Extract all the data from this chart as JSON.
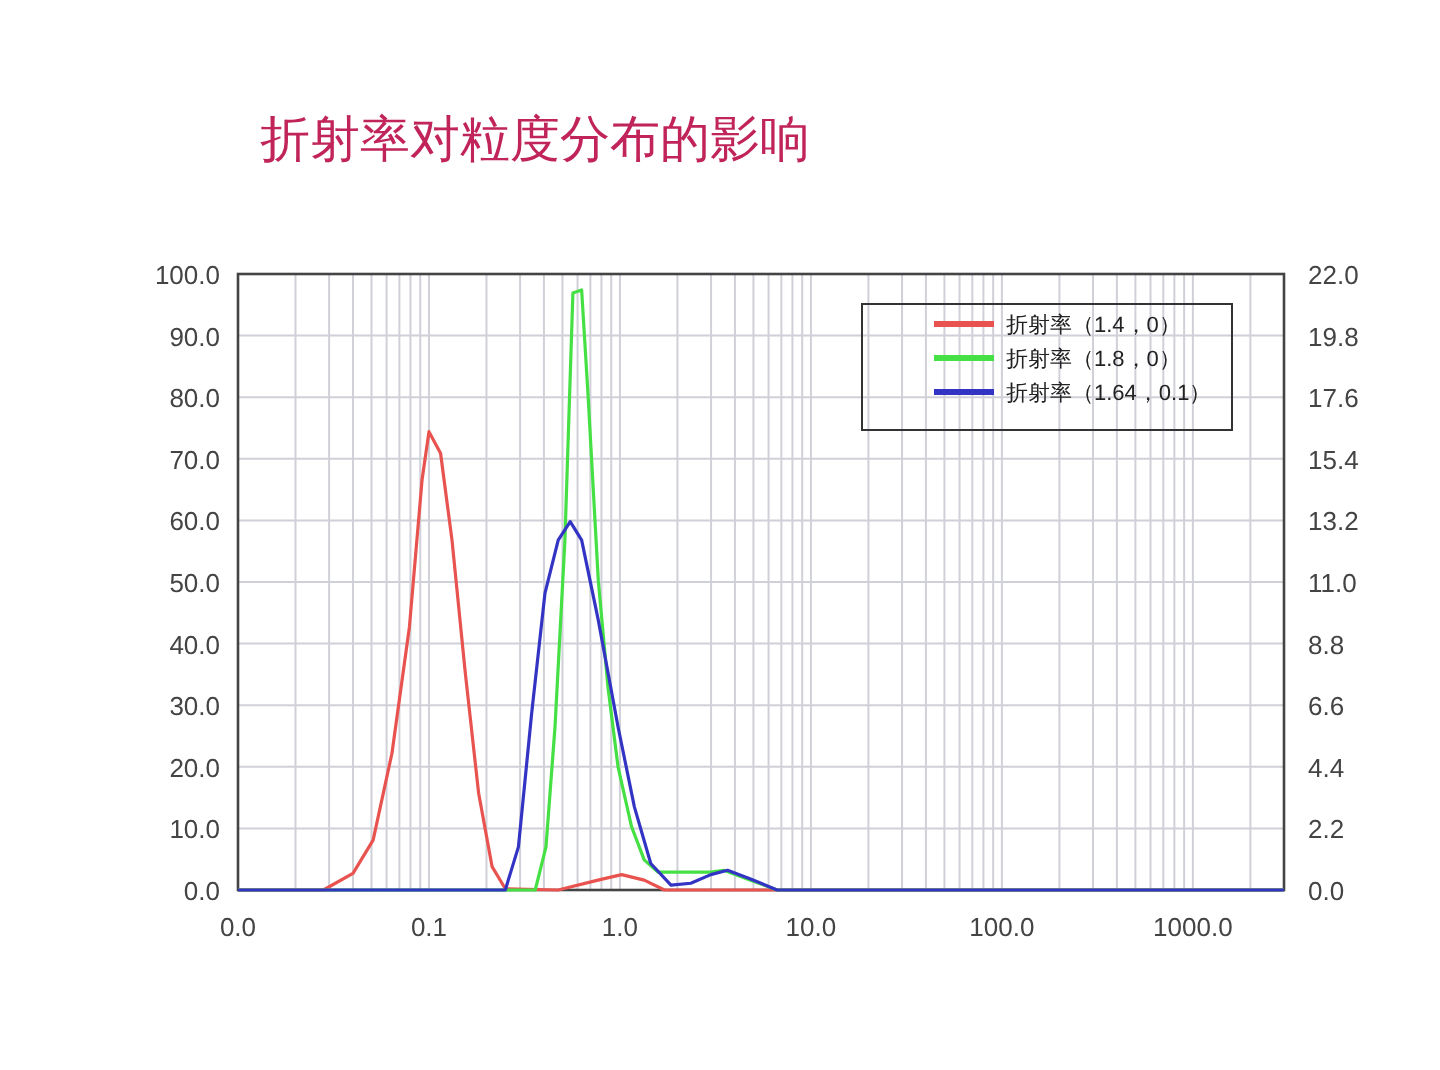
{
  "chart_data": {
    "type": "line",
    "title": "折射率对粒度分布的影响",
    "log": "x",
    "grid": true,
    "legend": "top right",
    "xlim": [
      0.01,
      3000
    ],
    "xticks": [
      {
        "value": 0.01,
        "label": "0.0"
      },
      {
        "value": 0.1,
        "label": "0.1"
      },
      {
        "value": 1,
        "label": "1.0"
      },
      {
        "value": 10,
        "label": "10.0"
      },
      {
        "value": 100,
        "label": "100.0"
      },
      {
        "value": 1000,
        "label": "1000.0"
      }
    ],
    "ylim": [
      0,
      100
    ],
    "yticks": [
      {
        "value": 0,
        "label": "0.0"
      },
      {
        "value": 10,
        "label": "10.0"
      },
      {
        "value": 20,
        "label": "20.0"
      },
      {
        "value": 30,
        "label": "30.0"
      },
      {
        "value": 40,
        "label": "40.0"
      },
      {
        "value": 50,
        "label": "50.0"
      },
      {
        "value": 60,
        "label": "60.0"
      },
      {
        "value": 70,
        "label": "70.0"
      },
      {
        "value": 80,
        "label": "80.0"
      },
      {
        "value": 90,
        "label": "90.0"
      },
      {
        "value": 100,
        "label": "100.0"
      }
    ],
    "y2lim": [
      0,
      22
    ],
    "y2ticks": [
      {
        "value": 0,
        "label": "0.0"
      },
      2.2,
      4.4,
      6.6,
      8.8,
      {
        "value": 11,
        "label": "11.0"
      },
      13.2,
      15.4,
      17.6,
      19.8,
      {
        "value": 22,
        "label": "22.0"
      }
    ],
    "series": [
      {
        "name": "折射率（1.4，0）",
        "color": "#e8534f",
        "x": [
          0.01,
          0.028,
          0.04,
          0.051,
          0.064,
          0.079,
          0.092,
          0.1,
          0.115,
          0.132,
          0.155,
          0.182,
          0.214,
          0.251,
          0.475,
          0.767,
          1.02,
          1.34,
          1.71,
          3000
        ],
        "values": [
          0,
          0,
          2.7,
          8.1,
          22.2,
          42.7,
          66.6,
          74.4,
          70.9,
          56.8,
          35.2,
          15.7,
          3.8,
          0.2,
          0,
          1.6,
          2.5,
          1.6,
          0,
          0
        ]
      },
      {
        "name": "折射率（1.8，0）",
        "color": "#44e044",
        "x": [
          0.01,
          0.36,
          0.41,
          0.457,
          0.515,
          0.567,
          0.63,
          0.68,
          0.77,
          0.865,
          0.977,
          1.15,
          1.34,
          1.58,
          2.99,
          3.5,
          4.83,
          6.65,
          3000
        ],
        "values": [
          0,
          0,
          7.0,
          26.5,
          56.8,
          96.9,
          97.4,
          80.6,
          50.3,
          33.0,
          20.0,
          10.3,
          4.9,
          2.9,
          2.9,
          3.2,
          1.6,
          0,
          0
        ]
      },
      {
        "name": "折射率（1.64，0.1）",
        "color": "#3434c4",
        "x": [
          0.01,
          0.251,
          0.294,
          0.345,
          0.405,
          0.475,
          0.549,
          0.63,
          0.77,
          0.977,
          1.19,
          1.45,
          1.85,
          2.35,
          2.99,
          3.66,
          4.83,
          6.65,
          3000
        ],
        "values": [
          0,
          0,
          7.0,
          28.7,
          48.2,
          56.8,
          59.8,
          56.8,
          43.8,
          26.5,
          13.5,
          4.3,
          0.8,
          1.1,
          2.5,
          3.2,
          1.8,
          0,
          0
        ]
      }
    ]
  }
}
